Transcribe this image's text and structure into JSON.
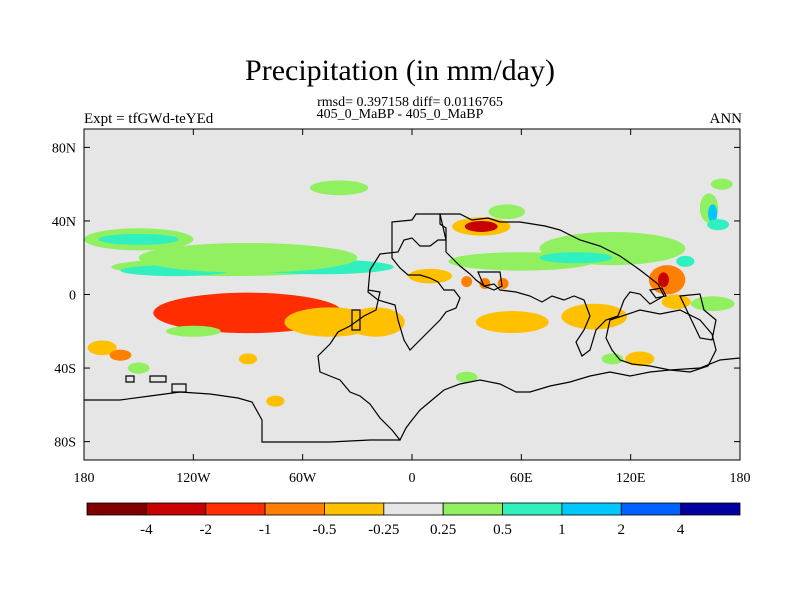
{
  "chart_data": {
    "type": "heatmap",
    "title": "Precipitation (in mm/day)",
    "stats_line": "rmsd= 0.397158 diff= 0.0116765",
    "case_line": "405_0_MaBP - 405_0_MaBP",
    "experiment_label": "Expt = tfGWd-teYEd",
    "season_label": "ANN",
    "x_axis": {
      "range": [
        -180,
        180
      ],
      "ticks": [
        -180,
        -120,
        -60,
        0,
        60,
        120,
        180
      ],
      "tick_labels": [
        "180",
        "120W",
        "60W",
        "0",
        "60E",
        "120E",
        "180"
      ]
    },
    "y_axis": {
      "range": [
        -90,
        90
      ],
      "ticks": [
        80,
        40,
        0,
        -40,
        -80
      ],
      "tick_labels": [
        "80N",
        "40N",
        "0",
        "40S",
        "80S"
      ]
    },
    "colorbar": {
      "orientation": "horizontal",
      "colors": [
        "#800000",
        "#c80000",
        "#ff2d00",
        "#ff8000",
        "#ffc000",
        "#e6e6e6",
        "#90f060",
        "#30f0c0",
        "#00c8ff",
        "#0060ff",
        "#0000a0"
      ],
      "boundaries": [
        -4,
        -2,
        -1,
        -0.5,
        -0.25,
        0.25,
        0.5,
        1,
        2,
        4
      ],
      "labels": [
        "-4",
        "-2",
        "-1",
        "-0.5",
        "-0.25",
        "0.25",
        "0.5",
        "1",
        "2",
        "4"
      ]
    },
    "anomaly_regions": [
      {
        "lon": -90,
        "lat": -10,
        "rlon": 52,
        "rlat": 11,
        "level": -1.5
      },
      {
        "lon": -92,
        "lat": -9,
        "rlon": 30,
        "rlat": 6,
        "level": -1.2
      },
      {
        "lon": -45,
        "lat": -15,
        "rlon": 25,
        "rlat": 8,
        "level": -0.4
      },
      {
        "lon": -20,
        "lat": -15,
        "rlon": 16,
        "rlat": 8,
        "level": -0.4
      },
      {
        "lon": 10,
        "lat": 10,
        "rlon": 12,
        "rlat": 4,
        "level": -0.4
      },
      {
        "lon": 55,
        "lat": -15,
        "rlon": 20,
        "rlat": 6,
        "level": -0.4
      },
      {
        "lon": 100,
        "lat": -12,
        "rlon": 18,
        "rlat": 7,
        "level": -0.4
      },
      {
        "lon": 140,
        "lat": 8,
        "rlon": 10,
        "rlat": 8,
        "level": -0.6
      },
      {
        "lon": 138,
        "lat": 8,
        "rlon": 3,
        "rlat": 4,
        "level": -3
      },
      {
        "lon": 145,
        "lat": -4,
        "rlon": 8,
        "rlat": 4,
        "level": -0.4
      },
      {
        "lon": 125,
        "lat": -35,
        "rlon": 8,
        "rlat": 4,
        "level": -0.4
      },
      {
        "lon": 38,
        "lat": 37,
        "rlon": 16,
        "rlat": 5,
        "level": -0.4
      },
      {
        "lon": 38,
        "lat": 37,
        "rlon": 9,
        "rlat": 3,
        "level": -3
      },
      {
        "lon": 30,
        "lat": 7,
        "rlon": 3,
        "rlat": 3,
        "level": -0.8
      },
      {
        "lon": 40,
        "lat": 6,
        "rlon": 3,
        "rlat": 3,
        "level": -0.8
      },
      {
        "lon": 50,
        "lat": 6,
        "rlon": 3,
        "rlat": 3,
        "level": -0.8
      },
      {
        "lon": -170,
        "lat": -29,
        "rlon": 8,
        "rlat": 4,
        "level": -0.4
      },
      {
        "lon": -160,
        "lat": -33,
        "rlon": 6,
        "rlat": 3,
        "level": -0.8
      },
      {
        "lon": -90,
        "lat": -35,
        "rlon": 5,
        "rlat": 3,
        "level": -0.4
      },
      {
        "lon": -75,
        "lat": -58,
        "rlon": 5,
        "rlat": 3,
        "level": -0.4
      },
      {
        "lon": -150,
        "lat": 30,
        "rlon": 30,
        "rlat": 6,
        "level": 0.3
      },
      {
        "lon": -150,
        "lat": 30,
        "rlon": 22,
        "rlat": 3,
        "level": 0.6
      },
      {
        "lon": -100,
        "lat": 15,
        "rlon": 65,
        "rlat": 5,
        "level": 0.4
      },
      {
        "lon": -130,
        "lat": 13,
        "rlon": 30,
        "rlat": 3,
        "level": 0.7
      },
      {
        "lon": -50,
        "lat": 15,
        "rlon": 40,
        "rlat": 4,
        "level": 0.7
      },
      {
        "lon": -90,
        "lat": 20,
        "rlon": 60,
        "rlat": 8,
        "level": 0.3
      },
      {
        "lon": -40,
        "lat": 58,
        "rlon": 16,
        "rlat": 4,
        "level": 0.3
      },
      {
        "lon": 60,
        "lat": 18,
        "rlon": 40,
        "rlat": 5,
        "level": 0.3
      },
      {
        "lon": 110,
        "lat": 25,
        "rlon": 40,
        "rlat": 9,
        "level": 0.3
      },
      {
        "lon": 90,
        "lat": 20,
        "rlon": 20,
        "rlat": 3,
        "level": 0.6
      },
      {
        "lon": 52,
        "lat": 45,
        "rlon": 10,
        "rlat": 4,
        "level": 0.3
      },
      {
        "lon": 163,
        "lat": 47,
        "rlon": 5,
        "rlat": 8,
        "level": 0.4
      },
      {
        "lon": 165,
        "lat": 44,
        "rlon": 2.5,
        "rlat": 5,
        "level": 1.5
      },
      {
        "lon": 170,
        "lat": 60,
        "rlon": 6,
        "rlat": 3,
        "level": 0.3
      },
      {
        "lon": 168,
        "lat": 38,
        "rlon": 6,
        "rlat": 3,
        "level": 0.7
      },
      {
        "lon": 165,
        "lat": -5,
        "rlon": 12,
        "rlat": 4,
        "level": 0.3
      },
      {
        "lon": -120,
        "lat": -20,
        "rlon": 15,
        "rlat": 3,
        "level": 0.3
      },
      {
        "lon": -150,
        "lat": -40,
        "rlon": 6,
        "rlat": 3,
        "level": 0.3
      },
      {
        "lon": 110,
        "lat": -35,
        "rlon": 6,
        "rlat": 3,
        "level": 0.3
      },
      {
        "lon": 30,
        "lat": -45,
        "rlon": 6,
        "rlat": 3,
        "level": 0.3
      },
      {
        "lon": 150,
        "lat": 18,
        "rlon": 5,
        "rlat": 3,
        "level": 0.7
      }
    ]
  }
}
